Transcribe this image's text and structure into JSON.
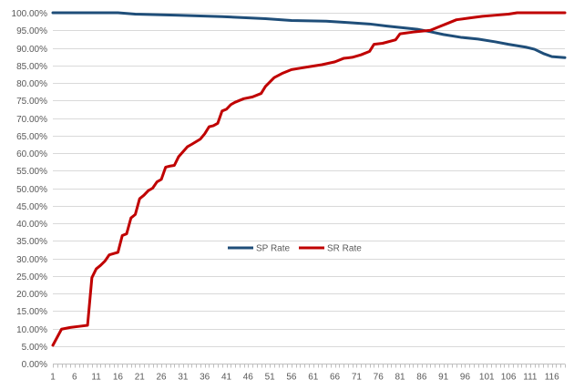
{
  "chart_data": {
    "type": "line",
    "title": "",
    "xlabel": "",
    "ylabel": "",
    "x_range": [
      1,
      119
    ],
    "x_ticks": [
      1,
      6,
      11,
      16,
      21,
      26,
      31,
      36,
      41,
      46,
      51,
      56,
      61,
      66,
      71,
      76,
      81,
      86,
      91,
      96,
      101,
      106,
      111,
      116
    ],
    "ylim": [
      0,
      100
    ],
    "y_ticks": [
      0,
      5,
      10,
      15,
      20,
      25,
      30,
      35,
      40,
      45,
      50,
      55,
      60,
      65,
      70,
      75,
      80,
      85,
      90,
      95,
      100
    ],
    "y_tick_format": "percent_2dp",
    "grid": "horizontal",
    "legend_position": "center",
    "series": [
      {
        "name": "SP Rate",
        "color": "#1f4e79",
        "points": [
          [
            1,
            100
          ],
          [
            16,
            100
          ],
          [
            20,
            99.6
          ],
          [
            30,
            99.3
          ],
          [
            40,
            98.9
          ],
          [
            50,
            98.3
          ],
          [
            56,
            97.8
          ],
          [
            64,
            97.6
          ],
          [
            69,
            97.2
          ],
          [
            74,
            96.8
          ],
          [
            78,
            96.2
          ],
          [
            81,
            95.8
          ],
          [
            85,
            95.3
          ],
          [
            88,
            94.6
          ],
          [
            91,
            93.8
          ],
          [
            95,
            93.0
          ],
          [
            99,
            92.5
          ],
          [
            103,
            91.7
          ],
          [
            106,
            91.0
          ],
          [
            110,
            90.2
          ],
          [
            112,
            89.6
          ],
          [
            114,
            88.4
          ],
          [
            116,
            87.5
          ],
          [
            119,
            87.2
          ]
        ]
      },
      {
        "name": "SR Rate",
        "color": "#c00000",
        "points": [
          [
            1,
            5.2
          ],
          [
            3,
            9.8
          ],
          [
            5,
            10.3
          ],
          [
            7,
            10.6
          ],
          [
            9,
            10.9
          ],
          [
            10,
            24.5
          ],
          [
            11,
            27.0
          ],
          [
            12,
            28.0
          ],
          [
            13,
            29.2
          ],
          [
            14,
            31.0
          ],
          [
            16,
            31.7
          ],
          [
            17,
            36.5
          ],
          [
            18,
            37.0
          ],
          [
            19,
            41.5
          ],
          [
            20,
            42.5
          ],
          [
            21,
            47.0
          ],
          [
            22,
            48.0
          ],
          [
            23,
            49.3
          ],
          [
            24,
            50.0
          ],
          [
            25,
            51.8
          ],
          [
            26,
            52.5
          ],
          [
            27,
            56.0
          ],
          [
            28,
            56.3
          ],
          [
            29,
            56.5
          ],
          [
            30,
            59.0
          ],
          [
            32,
            61.8
          ],
          [
            33,
            62.5
          ],
          [
            35,
            64.0
          ],
          [
            36,
            65.5
          ],
          [
            37,
            67.5
          ],
          [
            38,
            67.8
          ],
          [
            39,
            68.5
          ],
          [
            40,
            72.0
          ],
          [
            41,
            72.5
          ],
          [
            42,
            73.8
          ],
          [
            43,
            74.5
          ],
          [
            45,
            75.5
          ],
          [
            47,
            76.0
          ],
          [
            49,
            77.0
          ],
          [
            50,
            79.0
          ],
          [
            52,
            81.5
          ],
          [
            54,
            82.8
          ],
          [
            56,
            83.8
          ],
          [
            58,
            84.2
          ],
          [
            60,
            84.6
          ],
          [
            63,
            85.2
          ],
          [
            66,
            86.0
          ],
          [
            68,
            87.0
          ],
          [
            70,
            87.3
          ],
          [
            72,
            88.0
          ],
          [
            74,
            89.0
          ],
          [
            75,
            91.0
          ],
          [
            77,
            91.3
          ],
          [
            80,
            92.3
          ],
          [
            81,
            94.0
          ],
          [
            84,
            94.5
          ],
          [
            88,
            95.0
          ],
          [
            90,
            96.0
          ],
          [
            92,
            97.0
          ],
          [
            94,
            98.0
          ],
          [
            97,
            98.5
          ],
          [
            100,
            99.0
          ],
          [
            103,
            99.3
          ],
          [
            106,
            99.6
          ],
          [
            108,
            100
          ],
          [
            119,
            100
          ]
        ]
      }
    ]
  }
}
